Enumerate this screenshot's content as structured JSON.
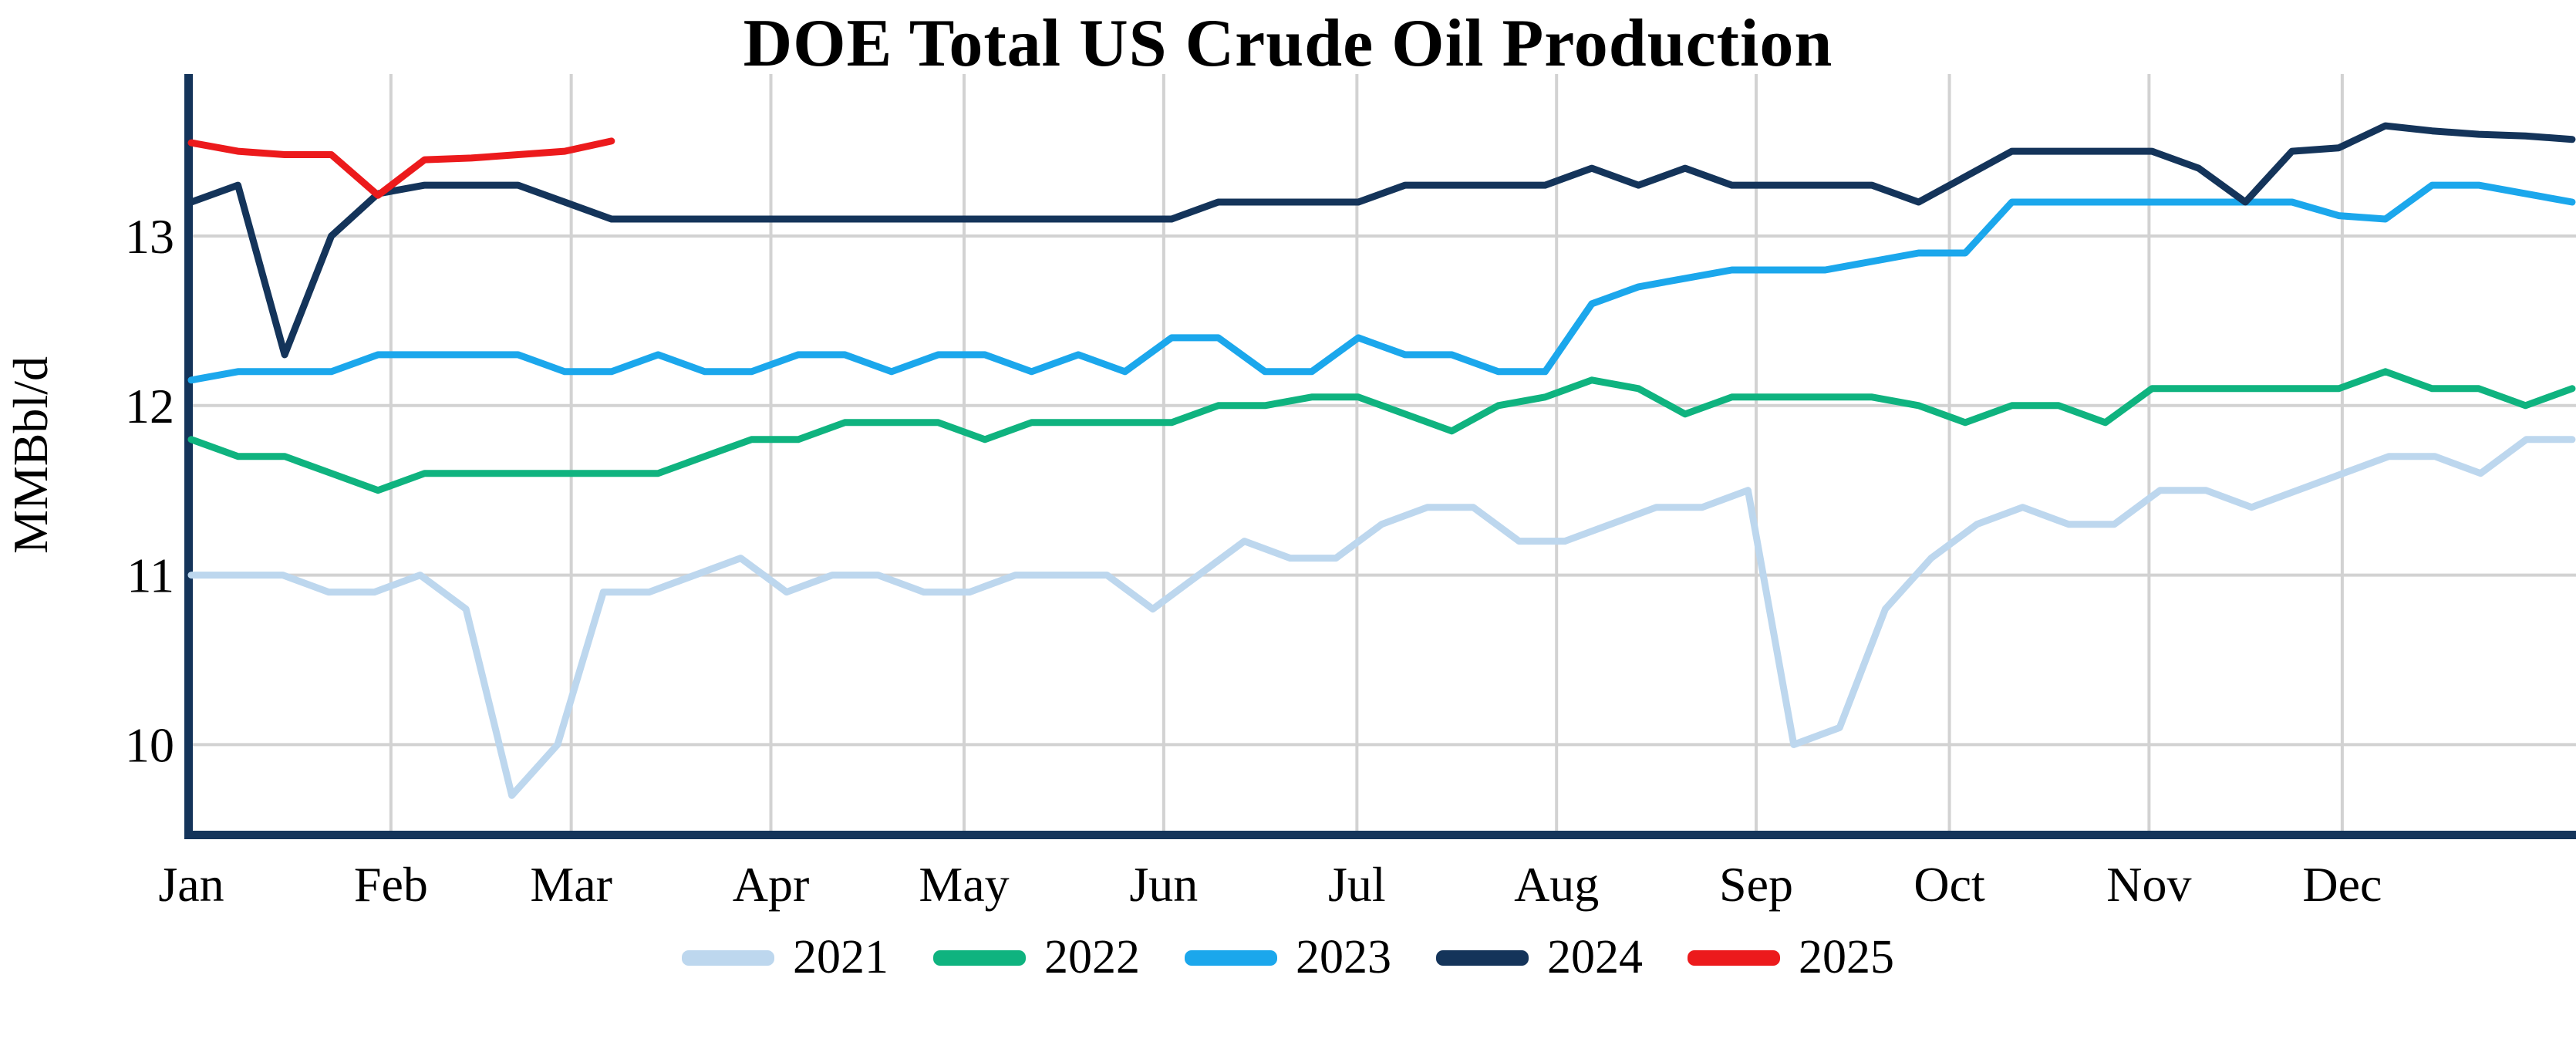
{
  "title": "DOE Total US Crude Oil Production",
  "y_axis": {
    "label": "MMBbl/d",
    "ticks": [
      13,
      12,
      11,
      10
    ]
  },
  "x_axis": {
    "months": [
      "Jan",
      "Feb",
      "Mar",
      "Apr",
      "May",
      "Jun",
      "Jul",
      "Aug",
      "Sep",
      "Oct",
      "Nov",
      "Dec"
    ],
    "month_start_days": [
      1,
      32,
      60,
      91,
      121,
      152,
      182,
      213,
      244,
      274,
      305,
      335
    ]
  },
  "legend": [
    {
      "label": "2021",
      "color": "#BDD7EE"
    },
    {
      "label": "2022",
      "color": "#0FB37F"
    },
    {
      "label": "2023",
      "color": "#1BA7EC"
    },
    {
      "label": "2024",
      "color": "#14345A"
    },
    {
      "label": "2025",
      "color": "#EC1A1C"
    }
  ],
  "colors": {
    "grid": "#D2D2D2",
    "axis": "#14345A",
    "title": "#000000"
  },
  "chart_data": {
    "type": "line",
    "title": "DOE Total US Crude Oil Production",
    "xlabel": "",
    "ylabel": "MMBbl/d",
    "x_unit": "week of year (Jan-Dec)",
    "ylim": [
      9.45,
      13.95
    ],
    "yticks": [
      10,
      11,
      12,
      13
    ],
    "grid": true,
    "legend_position": "bottom-center",
    "series": [
      {
        "name": "2021",
        "color": "#BDD7EE",
        "values": [
          11.0,
          11.0,
          11.0,
          10.9,
          10.9,
          11.0,
          10.8,
          9.7,
          10.0,
          10.9,
          10.9,
          11.0,
          11.1,
          10.9,
          11.0,
          11.0,
          10.9,
          10.9,
          11.0,
          11.0,
          11.0,
          10.8,
          11.0,
          11.2,
          11.1,
          11.1,
          11.3,
          11.4,
          11.4,
          11.2,
          11.2,
          11.3,
          11.4,
          11.4,
          11.5,
          10.0,
          10.1,
          10.8,
          11.1,
          11.3,
          11.4,
          11.3,
          11.3,
          11.5,
          11.5,
          11.4,
          11.5,
          11.6,
          11.7,
          11.7,
          11.6,
          11.8,
          11.8
        ]
      },
      {
        "name": "2022",
        "color": "#0FB37F",
        "values": [
          11.8,
          11.7,
          11.7,
          11.6,
          11.5,
          11.6,
          11.6,
          11.6,
          11.6,
          11.6,
          11.6,
          11.7,
          11.8,
          11.8,
          11.9,
          11.9,
          11.9,
          11.8,
          11.9,
          11.9,
          11.9,
          11.9,
          12.0,
          12.0,
          12.05,
          12.05,
          11.95,
          11.85,
          12.0,
          12.05,
          12.15,
          12.1,
          11.95,
          12.05,
          12.05,
          12.05,
          12.05,
          12.0,
          11.9,
          12.0,
          12.0,
          11.9,
          12.1,
          12.1,
          12.1,
          12.1,
          12.1,
          12.2,
          12.1,
          12.1,
          12.0,
          12.1
        ]
      },
      {
        "name": "2023",
        "color": "#1BA7EC",
        "values": [
          12.15,
          12.2,
          12.2,
          12.2,
          12.3,
          12.3,
          12.3,
          12.3,
          12.2,
          12.2,
          12.3,
          12.2,
          12.2,
          12.3,
          12.3,
          12.2,
          12.3,
          12.3,
          12.2,
          12.3,
          12.2,
          12.4,
          12.4,
          12.2,
          12.2,
          12.4,
          12.3,
          12.3,
          12.2,
          12.2,
          12.6,
          12.7,
          12.75,
          12.8,
          12.8,
          12.8,
          12.85,
          12.9,
          12.9,
          13.2,
          13.2,
          13.2,
          13.2,
          13.2,
          13.2,
          13.2,
          13.12,
          13.1,
          13.3,
          13.3,
          13.25,
          13.2
        ]
      },
      {
        "name": "2024",
        "color": "#14345A",
        "values": [
          13.2,
          13.3,
          12.3,
          13.0,
          13.25,
          13.3,
          13.3,
          13.3,
          13.2,
          13.1,
          13.1,
          13.1,
          13.1,
          13.1,
          13.1,
          13.1,
          13.1,
          13.1,
          13.1,
          13.1,
          13.1,
          13.1,
          13.2,
          13.2,
          13.2,
          13.2,
          13.3,
          13.3,
          13.3,
          13.3,
          13.4,
          13.3,
          13.4,
          13.3,
          13.3,
          13.3,
          13.3,
          13.2,
          13.35,
          13.5,
          13.5,
          13.5,
          13.5,
          13.4,
          13.2,
          13.5,
          13.52,
          13.65,
          13.62,
          13.6,
          13.59,
          13.57
        ]
      },
      {
        "name": "2025",
        "color": "#EC1A1C",
        "values": [
          13.55,
          13.5,
          13.48,
          13.48,
          13.24,
          13.45,
          13.46,
          13.48,
          13.5,
          13.56
        ]
      }
    ]
  }
}
